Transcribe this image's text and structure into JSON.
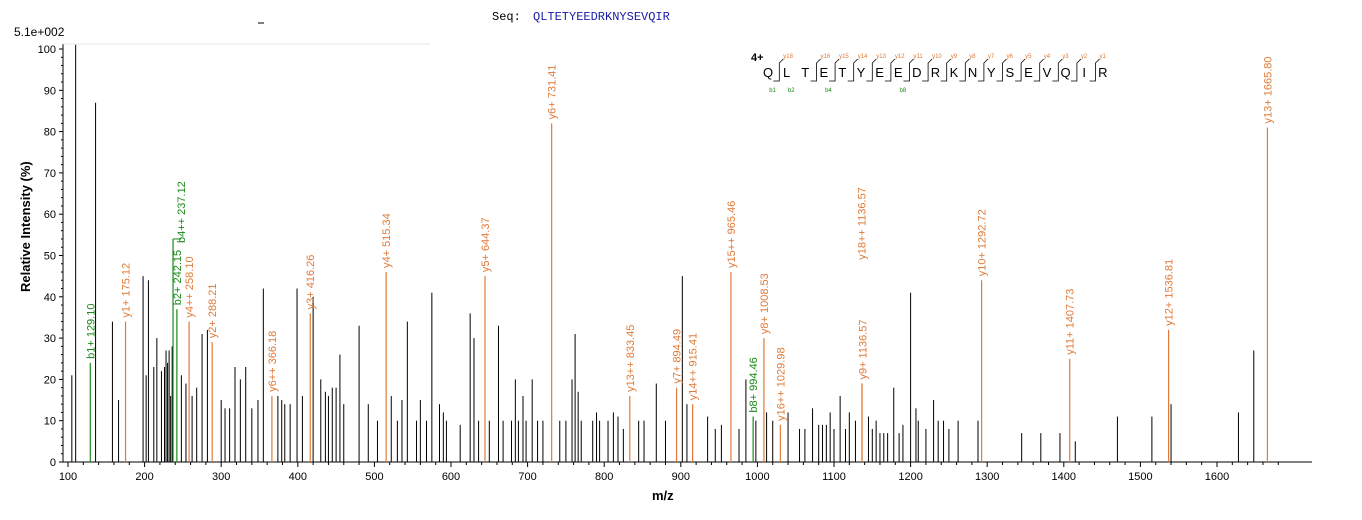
{
  "scale_label": "5.1e+002",
  "sequence": {
    "prefix": "Seq:",
    "value": "QLTETYEEDRKNYSEVQIR",
    "charge": "4+",
    "letters": [
      "Q",
      "L",
      "T",
      "E",
      "T",
      "Y",
      "E",
      "E",
      "D",
      "R",
      "K",
      "N",
      "Y",
      "S",
      "E",
      "V",
      "Q",
      "I",
      "R"
    ],
    "y_ions": [
      {
        "label": "y18",
        "pos": 1
      },
      {
        "label": "y16",
        "pos": 3
      },
      {
        "label": "y15",
        "pos": 4
      },
      {
        "label": "y14",
        "pos": 5
      },
      {
        "label": "y13",
        "pos": 6
      },
      {
        "label": "y12",
        "pos": 7
      },
      {
        "label": "y11",
        "pos": 8
      },
      {
        "label": "y10",
        "pos": 9
      },
      {
        "label": "y9",
        "pos": 10
      },
      {
        "label": "y8",
        "pos": 11
      },
      {
        "label": "y7",
        "pos": 12
      },
      {
        "label": "y6",
        "pos": 13
      },
      {
        "label": "y5",
        "pos": 14
      },
      {
        "label": "y4",
        "pos": 15
      },
      {
        "label": "y3",
        "pos": 16
      },
      {
        "label": "y2",
        "pos": 17
      },
      {
        "label": "y1",
        "pos": 18
      }
    ],
    "b_ions": [
      {
        "label": "b1",
        "pos": 1
      },
      {
        "label": "b2",
        "pos": 2
      },
      {
        "label": "b4",
        "pos": 4
      },
      {
        "label": "b8",
        "pos": 8
      }
    ]
  },
  "colors": {
    "y_ion": "#e07b39",
    "b_ion": "#1a8a1a",
    "unmatched": "#000000",
    "title": "#1a1aa6"
  },
  "chart_data": {
    "type": "bar",
    "xlabel": "m/z",
    "ylabel": "Relative   Intensity (%)",
    "xlim": [
      100,
      1700
    ],
    "ylim": [
      0,
      100
    ],
    "x_ticks": [
      100,
      200,
      300,
      400,
      500,
      600,
      700,
      800,
      900,
      1000,
      1100,
      1200,
      1300,
      1400,
      1500,
      1600
    ],
    "y_ticks": [
      0,
      10,
      20,
      30,
      40,
      50,
      60,
      70,
      80,
      90,
      100
    ],
    "annotated_peaks": [
      {
        "mz": 129.1,
        "intensity": 24,
        "label": "b1+ 129.10",
        "ion": "b"
      },
      {
        "mz": 175.12,
        "intensity": 34,
        "label": "y1+ 175.12",
        "ion": "y"
      },
      {
        "mz": 242.15,
        "intensity": 37,
        "label": "b2+ 242.15",
        "ion": "b"
      },
      {
        "mz": 237.12,
        "intensity": 54,
        "label": "b4++ 237.12",
        "ion": "b"
      },
      {
        "mz": 258.1,
        "intensity": 34,
        "label": "y4++ 258.10",
        "ion": "y"
      },
      {
        "mz": 288.21,
        "intensity": 29,
        "label": "y2+ 288.21",
        "ion": "y"
      },
      {
        "mz": 366.18,
        "intensity": 16,
        "label": "y6++ 366.18",
        "ion": "y"
      },
      {
        "mz": 416.26,
        "intensity": 36,
        "label": "y3+ 416.26",
        "ion": "y"
      },
      {
        "mz": 515.34,
        "intensity": 46,
        "label": "y4+ 515.34",
        "ion": "y"
      },
      {
        "mz": 644.37,
        "intensity": 45,
        "label": "y5+ 644.37",
        "ion": "y"
      },
      {
        "mz": 731.41,
        "intensity": 82,
        "label": "y6+ 731.41",
        "ion": "y"
      },
      {
        "mz": 833.45,
        "intensity": 16,
        "label": "y13++ 833.45",
        "ion": "y"
      },
      {
        "mz": 894.49,
        "intensity": 18,
        "label": "y7+ 894.49",
        "ion": "y"
      },
      {
        "mz": 915.41,
        "intensity": 14,
        "label": "y14++ 915.41",
        "ion": "y"
      },
      {
        "mz": 965.46,
        "intensity": 46,
        "label": "y15++ 965.46",
        "ion": "y"
      },
      {
        "mz": 994.46,
        "intensity": 11,
        "label": "b8+ 994.46",
        "ion": "b"
      },
      {
        "mz": 1008.53,
        "intensity": 30,
        "label": "y8+ 1008.53",
        "ion": "y"
      },
      {
        "mz": 1029.98,
        "intensity": 9,
        "label": "y16++ 1029.98",
        "ion": "y"
      },
      {
        "mz": 1136.57,
        "intensity": 19,
        "label": "y9+ 1136.57",
        "ion": "y"
      },
      {
        "mz": 1136.57,
        "intensity": 19,
        "label": "y18++ 1136.57",
        "ion": "y"
      },
      {
        "mz": 1292.72,
        "intensity": 44,
        "label": "y10+ 1292.72",
        "ion": "y"
      },
      {
        "mz": 1407.73,
        "intensity": 25,
        "label": "y11+ 1407.73",
        "ion": "y"
      },
      {
        "mz": 1536.81,
        "intensity": 32,
        "label": "y12+ 1536.81",
        "ion": "y"
      },
      {
        "mz": 1665.8,
        "intensity": 81,
        "label": "y13+ 1665.80",
        "ion": "y"
      }
    ],
    "peaks": [
      [
        105,
        21
      ],
      [
        110,
        101
      ],
      [
        136,
        87
      ],
      [
        158,
        34
      ],
      [
        166,
        15
      ],
      [
        198,
        45
      ],
      [
        202,
        21
      ],
      [
        205,
        44
      ],
      [
        212,
        23
      ],
      [
        216,
        30
      ],
      [
        222,
        22
      ],
      [
        226,
        23
      ],
      [
        228,
        27
      ],
      [
        230,
        24
      ],
      [
        232,
        27
      ],
      [
        234,
        16
      ],
      [
        236,
        28
      ],
      [
        248,
        21
      ],
      [
        254,
        19
      ],
      [
        262,
        16
      ],
      [
        268,
        18
      ],
      [
        275,
        31
      ],
      [
        282,
        32
      ],
      [
        300,
        15
      ],
      [
        305,
        13
      ],
      [
        311,
        13
      ],
      [
        318,
        23
      ],
      [
        325,
        20
      ],
      [
        332,
        23
      ],
      [
        340,
        13
      ],
      [
        348,
        15
      ],
      [
        355,
        42
      ],
      [
        374,
        16
      ],
      [
        379,
        15
      ],
      [
        383,
        14
      ],
      [
        390,
        14
      ],
      [
        399,
        42
      ],
      [
        406,
        16
      ],
      [
        420,
        40
      ],
      [
        430,
        20
      ],
      [
        436,
        17
      ],
      [
        440,
        16
      ],
      [
        445,
        18
      ],
      [
        450,
        18
      ],
      [
        455,
        26
      ],
      [
        460,
        14
      ],
      [
        480,
        33
      ],
      [
        492,
        14
      ],
      [
        504,
        10
      ],
      [
        522,
        16
      ],
      [
        530,
        10
      ],
      [
        536,
        15
      ],
      [
        543,
        34
      ],
      [
        555,
        10
      ],
      [
        560,
        15
      ],
      [
        568,
        10
      ],
      [
        575,
        41
      ],
      [
        585,
        14
      ],
      [
        590,
        12
      ],
      [
        594,
        10
      ],
      [
        612,
        9
      ],
      [
        625,
        36
      ],
      [
        630,
        30
      ],
      [
        636,
        10
      ],
      [
        650,
        10
      ],
      [
        662,
        33
      ],
      [
        668,
        10
      ],
      [
        679,
        10
      ],
      [
        684,
        20
      ],
      [
        688,
        10
      ],
      [
        694,
        16
      ],
      [
        698,
        10
      ],
      [
        706,
        20
      ],
      [
        713,
        10
      ],
      [
        720,
        10
      ],
      [
        742,
        10
      ],
      [
        750,
        10
      ],
      [
        758,
        20
      ],
      [
        762,
        31
      ],
      [
        766,
        17
      ],
      [
        770,
        10
      ],
      [
        785,
        10
      ],
      [
        790,
        12
      ],
      [
        794,
        10
      ],
      [
        805,
        10
      ],
      [
        812,
        12
      ],
      [
        818,
        11
      ],
      [
        825,
        8
      ],
      [
        845,
        10
      ],
      [
        852,
        10
      ],
      [
        868,
        19
      ],
      [
        880,
        10
      ],
      [
        902,
        45
      ],
      [
        908,
        14
      ],
      [
        935,
        11
      ],
      [
        945,
        8
      ],
      [
        953,
        9
      ],
      [
        976,
        8
      ],
      [
        985,
        20
      ],
      [
        998,
        10
      ],
      [
        1012,
        12
      ],
      [
        1020,
        10
      ],
      [
        1040,
        12
      ],
      [
        1055,
        8
      ],
      [
        1062,
        8
      ],
      [
        1072,
        13
      ],
      [
        1080,
        9
      ],
      [
        1085,
        9
      ],
      [
        1090,
        9
      ],
      [
        1095,
        12
      ],
      [
        1100,
        8
      ],
      [
        1108,
        16
      ],
      [
        1115,
        8
      ],
      [
        1120,
        12
      ],
      [
        1128,
        10
      ],
      [
        1145,
        11
      ],
      [
        1150,
        8
      ],
      [
        1155,
        10
      ],
      [
        1160,
        7
      ],
      [
        1165,
        7
      ],
      [
        1170,
        7
      ],
      [
        1178,
        18
      ],
      [
        1185,
        7
      ],
      [
        1190,
        9
      ],
      [
        1200,
        41
      ],
      [
        1207,
        13
      ],
      [
        1210,
        10
      ],
      [
        1220,
        8
      ],
      [
        1230,
        15
      ],
      [
        1236,
        10
      ],
      [
        1243,
        10
      ],
      [
        1250,
        8
      ],
      [
        1262,
        10
      ],
      [
        1288,
        10
      ],
      [
        1345,
        7
      ],
      [
        1370,
        7
      ],
      [
        1395,
        7
      ],
      [
        1415,
        5
      ],
      [
        1470,
        11
      ],
      [
        1515,
        11
      ],
      [
        1540,
        14
      ],
      [
        1628,
        12
      ],
      [
        1648,
        27
      ]
    ]
  }
}
